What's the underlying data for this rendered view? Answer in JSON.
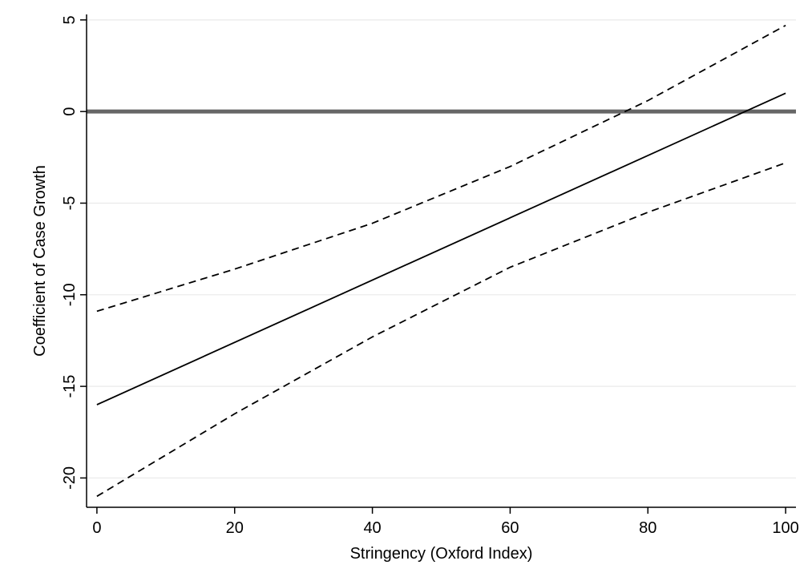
{
  "chart_data": {
    "type": "line",
    "title": "",
    "xlabel": "Stringency (Oxford Index)",
    "ylabel": "Coefficient of Case Growth",
    "xlim": [
      -1.5,
      101.5
    ],
    "ylim": [
      -21.6,
      5.3
    ],
    "x_ticks": [
      0,
      20,
      40,
      60,
      80,
      100
    ],
    "x_tick_labels": [
      "0",
      "20",
      "40",
      "60",
      "80",
      "100"
    ],
    "y_ticks": [
      5,
      0,
      -5,
      -10,
      -15,
      -20
    ],
    "y_tick_labels": [
      "5",
      "0",
      "-5",
      "-10",
      "-15",
      "-20"
    ],
    "grid": "horizontal",
    "legend": "none",
    "reference_line": {
      "y": 0,
      "color": "#666666"
    },
    "series": [
      {
        "style": "solid",
        "color": "#000000",
        "x": [
          0,
          100
        ],
        "y": [
          -16.0,
          1.0
        ]
      },
      {
        "style": "dashed",
        "color": "#000000",
        "x": [
          0,
          20,
          40,
          60,
          80,
          100
        ],
        "y": [
          -10.9,
          -8.6,
          -6.1,
          -3.0,
          0.6,
          4.7
        ]
      },
      {
        "style": "dashed",
        "color": "#000000",
        "x": [
          0,
          20,
          40,
          60,
          80,
          100
        ],
        "y": [
          -21.0,
          -16.5,
          -12.3,
          -8.5,
          -5.5,
          -2.8
        ]
      }
    ],
    "colors": {
      "grid": "#eaeaea",
      "axis": "#000000",
      "background": "#ffffff"
    }
  }
}
